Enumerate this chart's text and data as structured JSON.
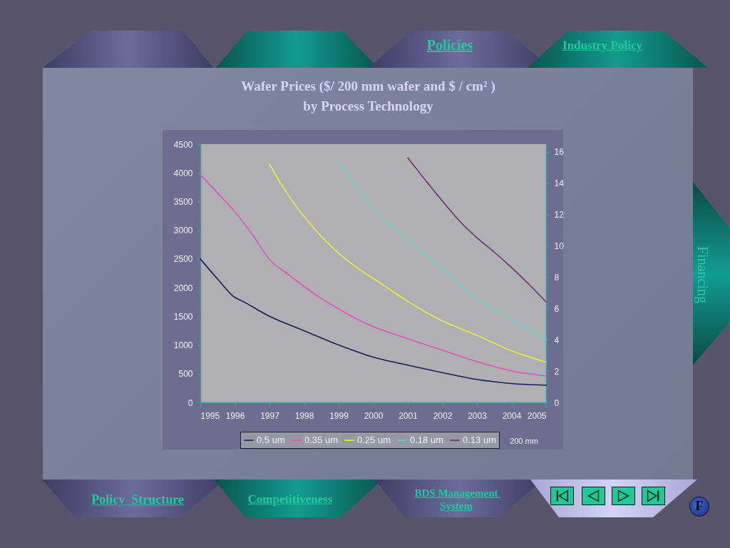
{
  "chart_data": {
    "type": "line",
    "title": "Wafer Prices ($/ 200 mm wafer and $ / cm² )\nby Process Technology",
    "xlim": [
      1995,
      2005
    ],
    "xticks": [
      1995,
      1996,
      1997,
      1998,
      1999,
      2000,
      2001,
      2002,
      2003,
      2004,
      2005
    ],
    "ylim": [
      0,
      4500
    ],
    "yticks": [
      0,
      500,
      1000,
      1500,
      2000,
      2500,
      3000,
      3500,
      4000,
      4500
    ],
    "y2lim": [
      0,
      16.5
    ],
    "y2ticks": [
      0,
      2,
      4,
      6,
      8,
      10,
      12,
      14,
      16
    ],
    "legend": "bottom",
    "series": [
      {
        "name": "0.5 um",
        "color": "#1c1c58",
        "x": [
          1995,
          1995.5,
          1996,
          1996.2,
          1997,
          1998,
          1999,
          2000,
          2001,
          2002,
          2003,
          2004,
          2005
        ],
        "values": [
          2500,
          2150,
          1830,
          1770,
          1500,
          1250,
          1000,
          790,
          650,
          520,
          400,
          330,
          300
        ]
      },
      {
        "name": "0.35 um",
        "color": "#e050c0",
        "x": [
          1995,
          1995.5,
          1996,
          1996.5,
          1997,
          1997.5,
          1998,
          1998.5,
          1999,
          1999.5,
          2000,
          2001,
          2002,
          2003,
          2004,
          2005
        ],
        "values": [
          3970,
          3650,
          3320,
          2930,
          2490,
          2250,
          2020,
          1810,
          1630,
          1460,
          1320,
          1110,
          910,
          710,
          550,
          460
        ]
      },
      {
        "name": "0.25 um",
        "color": "#eeee44",
        "x": [
          1997,
          1997.5,
          1998,
          1998.5,
          1999,
          1999.5,
          2000,
          2000.5,
          2001,
          2002,
          2003,
          2004,
          2005
        ],
        "values": [
          4150,
          3650,
          3240,
          2890,
          2600,
          2360,
          2160,
          1960,
          1760,
          1420,
          1170,
          900,
          700
        ]
      },
      {
        "name": "0.18 um",
        "color": "#5ed6cc",
        "x": [
          1999,
          1999.5,
          2000,
          2000.5,
          2001,
          2002,
          2003,
          2004,
          2005
        ],
        "values": [
          4200,
          3780,
          3380,
          3090,
          2830,
          2330,
          1810,
          1440,
          1100
        ]
      },
      {
        "name": "0.13 um",
        "color": "#6a3070",
        "x": [
          2001,
          2001.5,
          2002,
          2002.5,
          2003,
          2003.5,
          2004,
          2004.5,
          2005
        ],
        "values": [
          4260,
          3880,
          3510,
          3160,
          2870,
          2620,
          2350,
          2060,
          1750
        ]
      }
    ],
    "annotations": [
      "200 mm",
      "Policies",
      "Industry Policy",
      "Financing",
      "Policy  Structure",
      "Competitiveness",
      "BDS Management System",
      "F"
    ]
  }
}
